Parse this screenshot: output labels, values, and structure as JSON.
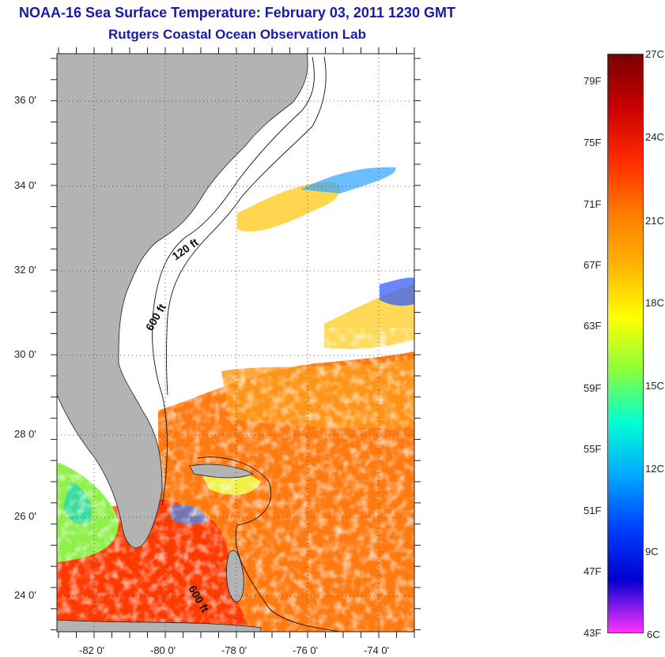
{
  "header": {
    "title": "NOAA-16 Sea Surface Temperature:  February 03, 2011 1230 GMT",
    "subtitle": "Rutgers Coastal Ocean Observation Lab"
  },
  "map": {
    "lat_labels": [
      "36 0'",
      "34 0'",
      "32 0'",
      "30 0'",
      "28 0'",
      "26 0'",
      "24 0'"
    ],
    "lon_labels": [
      "-82 0'",
      "-80 0'",
      "-78 0'",
      "-76 0'",
      "-74 0'"
    ],
    "contour_labels": [
      "120 ft",
      "600 ft",
      "600 ft"
    ],
    "land_color": "#b3b3b3",
    "cloud_color": "#ffffff"
  },
  "colorbar": {
    "fahrenheit_labels": [
      "79F",
      "75F",
      "71F",
      "67F",
      "63F",
      "59F",
      "55F",
      "51F",
      "47F",
      "43F"
    ],
    "celsius_labels": [
      "27C",
      "24C",
      "21C",
      "18C",
      "15C",
      "12C",
      "9C",
      "6C"
    ],
    "colors": [
      "#7a0000",
      "#c80000",
      "#ff2a00",
      "#ff7a00",
      "#ffb400",
      "#ffff00",
      "#8cff3a",
      "#00ffd2",
      "#00aaff",
      "#0040ff",
      "#0000d0",
      "#ff33ff"
    ]
  }
}
